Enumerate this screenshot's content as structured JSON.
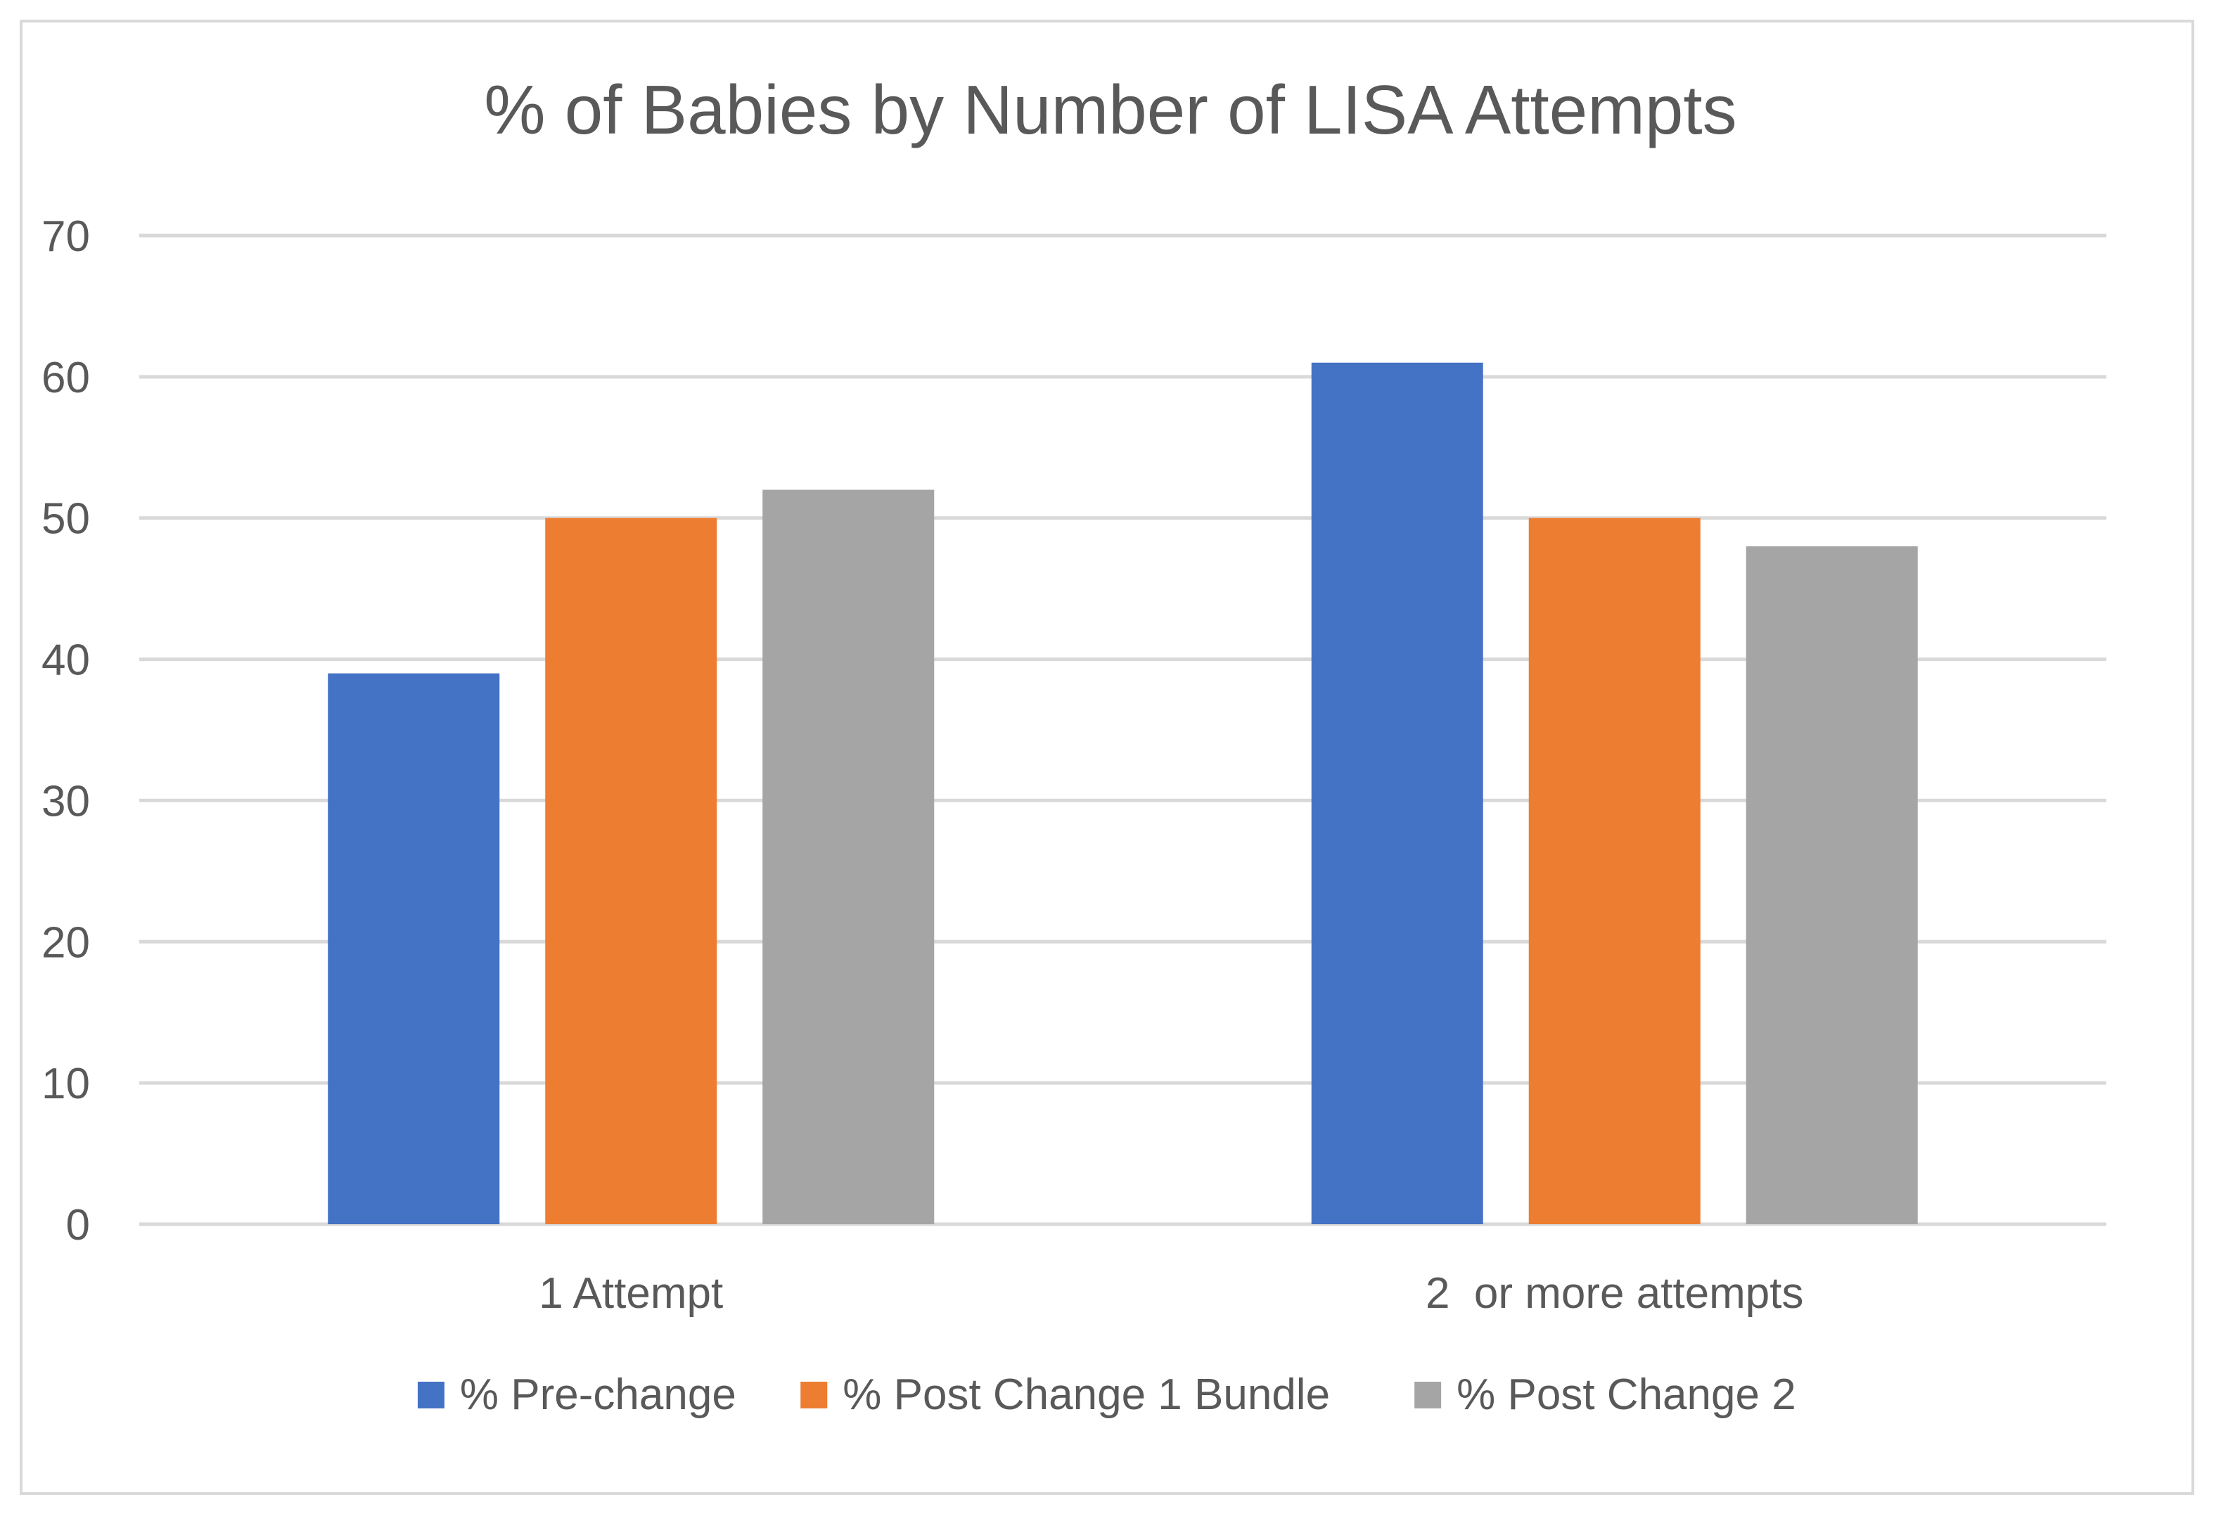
{
  "chart_data": {
    "type": "bar",
    "title": "% of Babies by Number of LISA Attempts",
    "xlabel": "",
    "ylabel": "",
    "categories": [
      "1 Attempt",
      "2  or more attempts"
    ],
    "series": [
      {
        "name": "% Pre-change",
        "values": [
          39,
          61
        ],
        "color": "#4472c4"
      },
      {
        "name": "% Post Change 1 Bundle",
        "values": [
          50,
          50
        ],
        "color": "#ed7d31"
      },
      {
        "name": "% Post Change 2",
        "values": [
          52,
          48
        ],
        "color": "#a5a5a5"
      }
    ],
    "ylim": [
      0,
      70
    ],
    "yticks": [
      0,
      10,
      20,
      30,
      40,
      50,
      60,
      70
    ],
    "grid": true,
    "legend_position": "bottom",
    "colors": {
      "gridline": "#d9d9d9",
      "text": "#595959",
      "border": "#d9d9d9"
    }
  }
}
